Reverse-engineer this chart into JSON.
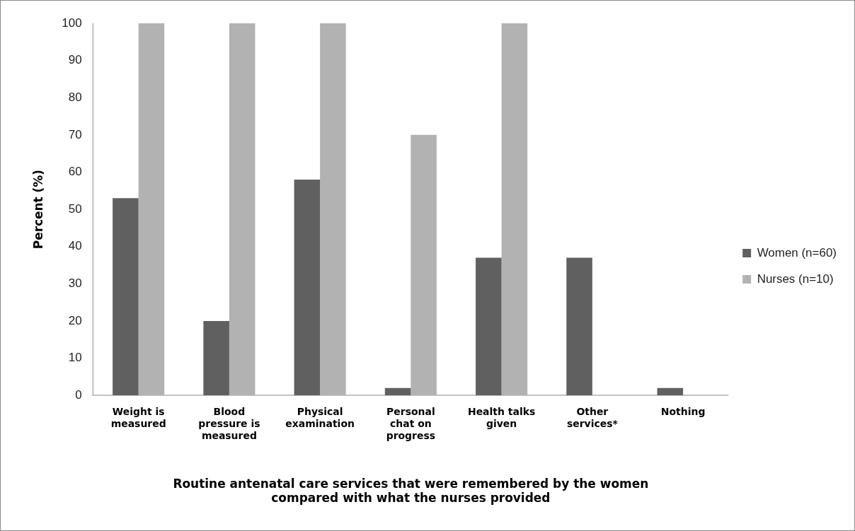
{
  "chart_data": {
    "type": "bar",
    "xlabel": "Routine antenatal care services that were remembered by the women compared with what the nurses provided",
    "ylabel": "Percent (%)",
    "categories": [
      "Weight is measured",
      "Blood pressure is measured",
      "Physical examination",
      "Personal chat on progress",
      "Health talks given",
      "Other services*",
      "Nothing"
    ],
    "series": [
      {
        "name": "Women (n=60)",
        "color": "#606060",
        "values": [
          53,
          20,
          58,
          2,
          37,
          37,
          2
        ]
      },
      {
        "name": "Nurses (n=10)",
        "color": "#b2b2b2",
        "values": [
          100,
          100,
          100,
          70,
          100,
          0,
          0
        ]
      }
    ],
    "ylim": [
      0,
      100
    ],
    "yticks": [
      0,
      10,
      20,
      30,
      40,
      50,
      60,
      70,
      80,
      90,
      100
    ],
    "grid": false,
    "legend": "right"
  }
}
